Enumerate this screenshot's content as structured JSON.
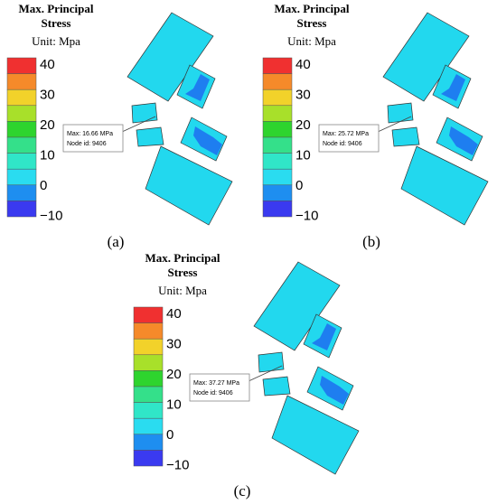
{
  "panels": [
    {
      "label": "(a)",
      "legend": {
        "title": [
          "Max. Principal",
          "Stress"
        ],
        "unit": "Unit: Mpa",
        "ticks": [
          "40",
          "30",
          "20",
          "10",
          "0",
          "−10"
        ]
      },
      "annotation": [
        "Max: 16.66 MPa",
        "Node id: 9406"
      ]
    },
    {
      "label": "(b)",
      "legend": {
        "title": [
          "Max. Principal",
          "Stress"
        ],
        "unit": "Unit: Mpa",
        "ticks": [
          "40",
          "30",
          "20",
          "10",
          "0",
          "−10"
        ]
      },
      "annotation": [
        "Max: 25.72 MPa",
        "Node id: 9406"
      ]
    },
    {
      "label": "(c)",
      "legend": {
        "title": [
          "Max. Principal",
          "Stress"
        ],
        "unit": "Unit: Mpa",
        "ticks": [
          "40",
          "30",
          "20",
          "10",
          "0",
          "−10"
        ]
      },
      "annotation": [
        "Max: 37.27 MPa",
        "Node id: 9406"
      ]
    }
  ]
}
